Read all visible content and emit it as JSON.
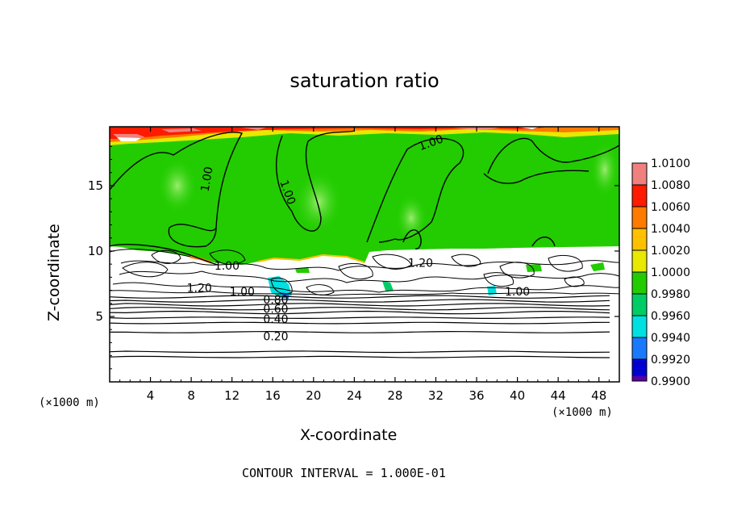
{
  "chart_data": {
    "type": "heatmap",
    "title": "saturation ratio",
    "xlabel": "X-coordinate",
    "ylabel": "Z-coordinate",
    "x_unit": "(×1000 m)",
    "xlim": [
      0,
      50
    ],
    "ylim": [
      0,
      19.5
    ],
    "x_ticks": [
      4,
      8,
      12,
      16,
      20,
      24,
      28,
      32,
      36,
      40,
      44,
      48
    ],
    "y_ticks": [
      5,
      10,
      15
    ],
    "contour_interval_text": "CONTOUR INTERVAL = 1.000E-01",
    "colorbar": {
      "levels": [
        1.01,
        1.008,
        1.006,
        1.004,
        1.002,
        1.0,
        0.998,
        0.996,
        0.994,
        0.992,
        0.99
      ],
      "labels": [
        "1.0100",
        "1.0080",
        "1.0060",
        "1.0040",
        "1.0020",
        "1.0000",
        "0.9980",
        "0.9960",
        "0.9940",
        "0.9920",
        "0.9900"
      ],
      "colors": [
        "#f08080",
        "#ff1a00",
        "#ff7a00",
        "#ffc000",
        "#e8e800",
        "#22cc00",
        "#00cc66",
        "#00e0e0",
        "#1a7aff",
        "#0000d0",
        "#5a00a0"
      ]
    },
    "contour_labels": [
      {
        "text": "1.00",
        "x": 9.5,
        "z": 15.5,
        "angle": -80
      },
      {
        "text": "1.00",
        "x": 17.5,
        "z": 14.5,
        "angle": 70
      },
      {
        "text": "1.00",
        "x": 31.5,
        "z": 18.3,
        "angle": -20
      },
      {
        "text": "1.00",
        "x": 11.5,
        "z": 8.9,
        "angle": 0
      },
      {
        "text": "1.20",
        "x": 8.8,
        "z": 7.2,
        "angle": 0
      },
      {
        "text": "1.00",
        "x": 13.0,
        "z": 6.9,
        "angle": 0
      },
      {
        "text": "1.20",
        "x": 30.5,
        "z": 9.1,
        "angle": 0
      },
      {
        "text": "1.00",
        "x": 40.0,
        "z": 6.9,
        "angle": 0
      },
      {
        "text": "0.80",
        "x": 16.3,
        "z": 6.3,
        "angle": 0
      },
      {
        "text": "0.60",
        "x": 16.3,
        "z": 5.6,
        "angle": 0
      },
      {
        "text": "0.40",
        "x": 16.3,
        "z": 4.8,
        "angle": 0
      },
      {
        "text": "0.20",
        "x": 16.3,
        "z": 3.5,
        "angle": 0
      }
    ],
    "background_lines_z": [
      1.9,
      2.3,
      3.8,
      4.5,
      4.9,
      5.3,
      5.6,
      5.9,
      6.2,
      6.5
    ]
  }
}
